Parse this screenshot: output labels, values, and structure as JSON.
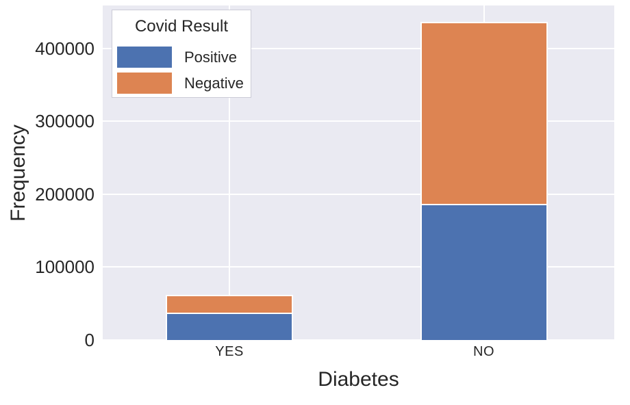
{
  "figure": {
    "background": "#ffffff",
    "plot_background": "#eaeaf2",
    "grid_color": "#ffffff",
    "text_color": "#262626"
  },
  "chart_data": {
    "type": "bar",
    "stacked": true,
    "categories": [
      "YES",
      "NO"
    ],
    "series": [
      {
        "name": "Positive",
        "color": "#4c72b0",
        "values": [
          36000,
          185000
        ]
      },
      {
        "name": "Negative",
        "color": "#dd8452",
        "values": [
          26000,
          252000
        ]
      }
    ],
    "title": "",
    "xlabel": "Diabetes",
    "ylabel": "Frequency",
    "ylim": [
      0,
      459000
    ],
    "yticks": [
      0,
      100000,
      200000,
      300000,
      400000
    ],
    "ytick_labels": [
      "0",
      "100000",
      "200000",
      "300000",
      "400000"
    ],
    "grid": true,
    "legend": {
      "title": "Covid Result",
      "position": "upper-left",
      "entries": [
        "Positive",
        "Negative"
      ]
    }
  }
}
